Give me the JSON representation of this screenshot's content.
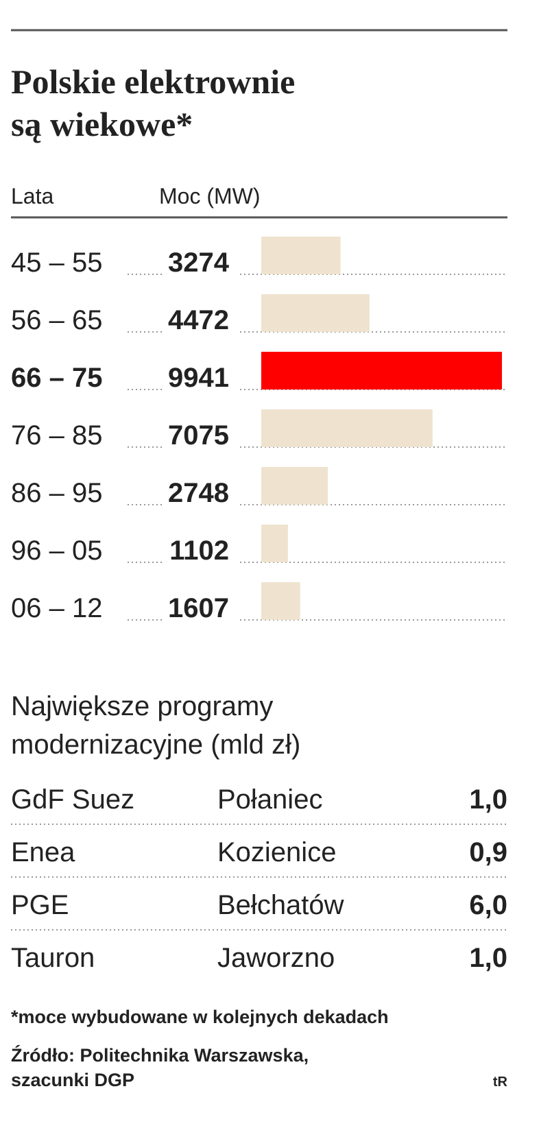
{
  "chart_data": {
    "type": "bar",
    "title": [
      "Polskie elektrownie",
      "są wiekowe*"
    ],
    "category_label": "Lata",
    "value_label": "Moc (MW)",
    "categories": [
      "45 – 55",
      "56 – 65",
      "66 – 75",
      "76 – 85",
      "86 – 95",
      "96 – 05",
      "06 – 12"
    ],
    "values": [
      3274,
      4472,
      9941,
      7075,
      2748,
      1102,
      1607
    ],
    "colors": [
      "#efe3d0",
      "#efe3d0",
      "#ff0000",
      "#efe3d0",
      "#efe3d0",
      "#efe3d0",
      "#efe3d0"
    ]
  },
  "table": {
    "title": [
      "Największe programy",
      "modernizacyjne (mld zł)"
    ],
    "rows": [
      [
        "GdF Suez",
        "Połaniec",
        "1,0"
      ],
      [
        "Enea",
        "Kozienice",
        "0,9"
      ],
      [
        "PGE",
        "Bełchatów",
        "6,0"
      ],
      [
        "Tauron",
        "Jaworzno",
        "1,0"
      ]
    ]
  },
  "footnote": "*moce wybudowane w kolejnych dekadach",
  "source": [
    "Źródło: Politechnika Warszawska,",
    "szacunki DGP"
  ],
  "credit": "tR"
}
